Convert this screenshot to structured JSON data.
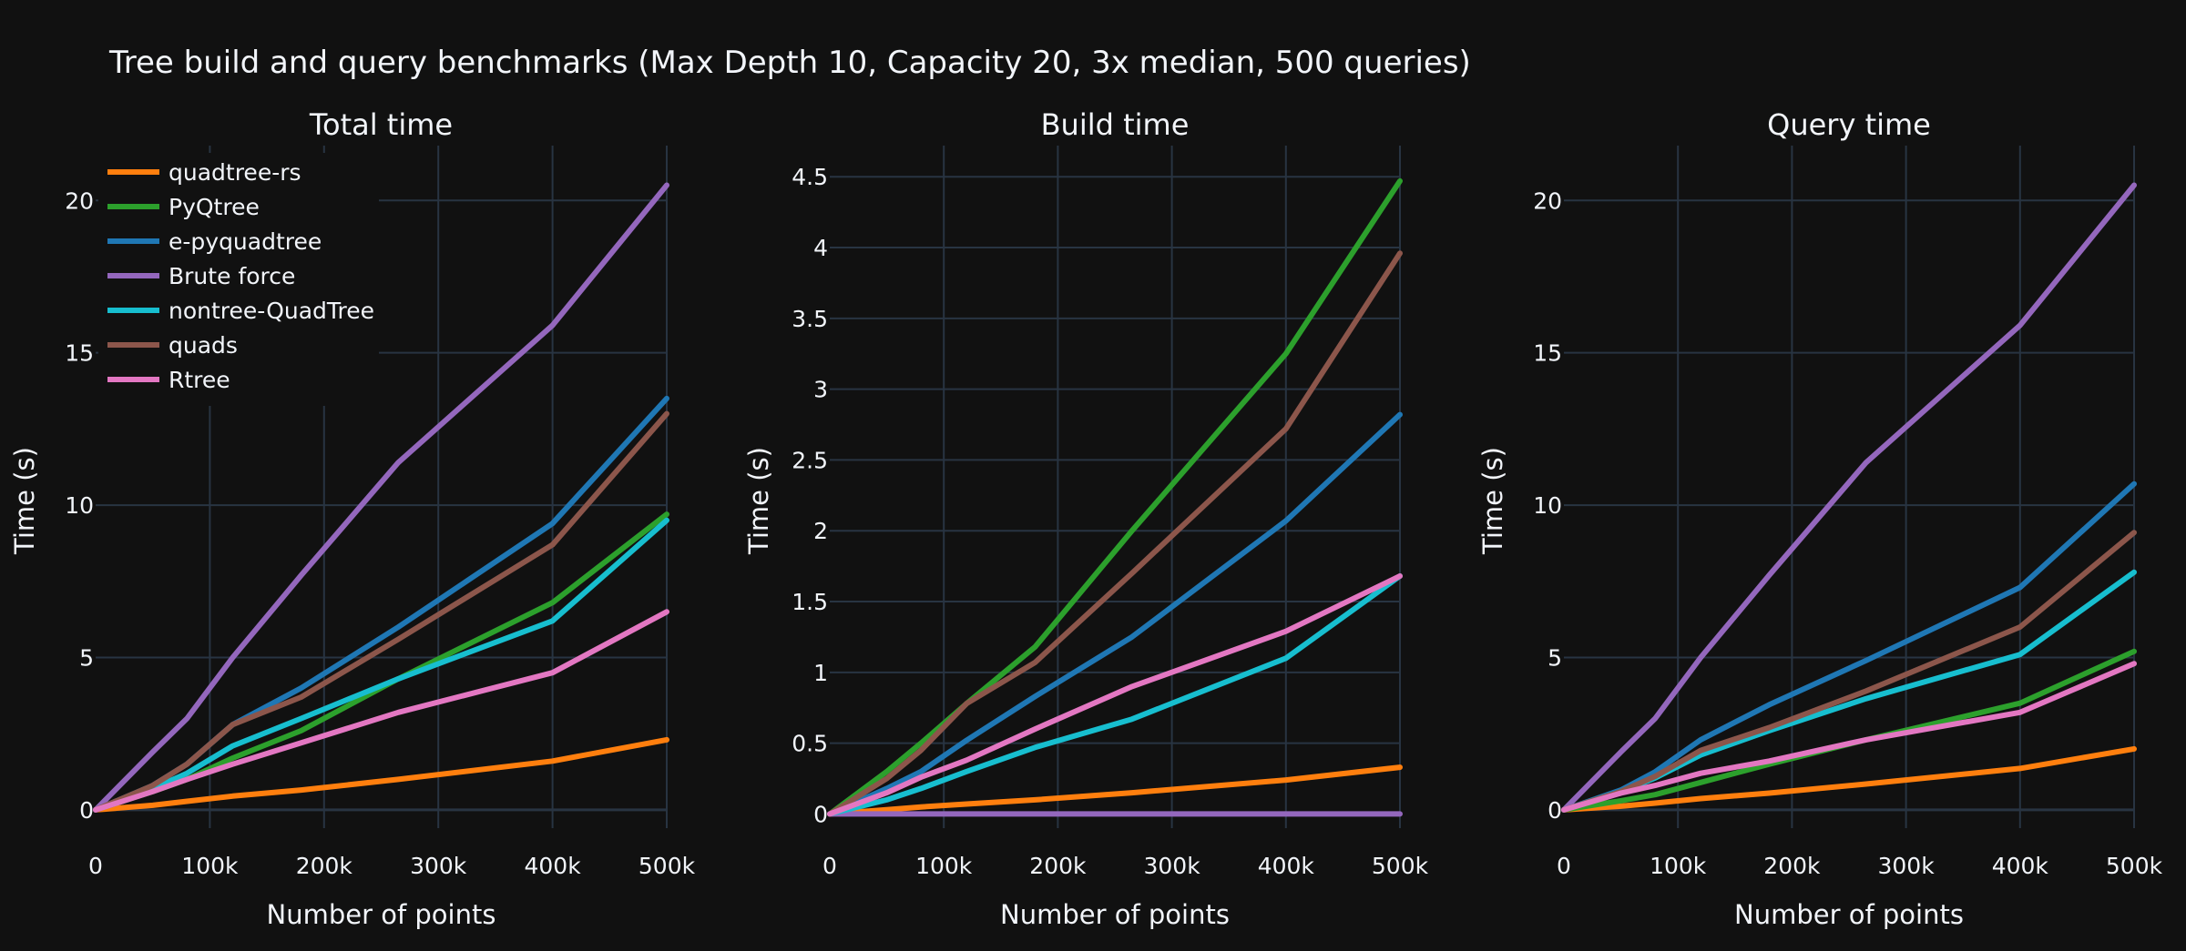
{
  "title": "Tree build and query benchmarks (Max Depth 10, Capacity 20, 3x median, 500 queries)",
  "colors": {
    "background": "#111111",
    "grid": "#283442",
    "text": "#f2f5fa"
  },
  "legend": {
    "placement": "top-left",
    "entries": [
      "quadtree-rs",
      "PyQtree",
      "e-pyquadtree",
      "Brute force",
      "nontree-QuadTree",
      "quads",
      "Rtree"
    ]
  },
  "chart_data": [
    {
      "type": "line",
      "title": "Total time",
      "xlabel": "Number of points",
      "ylabel": "Time (s)",
      "xlim": [
        0,
        500000
      ],
      "ylim": [
        -0.6,
        21.8
      ],
      "x_ticks": [
        0,
        100000,
        200000,
        300000,
        400000,
        500000
      ],
      "x_tick_labels": [
        "0",
        "100k",
        "200k",
        "300k",
        "400k",
        "500k"
      ],
      "y_ticks": [
        0,
        5,
        10,
        15,
        20
      ],
      "y_tick_labels": [
        "0",
        "5",
        "10",
        "15",
        "20"
      ],
      "grid": true,
      "x": [
        0,
        50000,
        80000,
        120000,
        180000,
        265000,
        400000,
        500000
      ],
      "series": [
        {
          "name": "quadtree-rs",
          "color": "#ff7f0e",
          "values": [
            0,
            0.15,
            0.28,
            0.45,
            0.65,
            1.0,
            1.6,
            2.3
          ]
        },
        {
          "name": "PyQtree",
          "color": "#2ca02c",
          "values": [
            0,
            0.6,
            1.0,
            1.7,
            2.6,
            4.3,
            6.8,
            9.7
          ]
        },
        {
          "name": "e-pyquadtree",
          "color": "#1f77b4",
          "values": [
            0,
            0.8,
            1.5,
            2.8,
            4.0,
            6.0,
            9.4,
            13.5
          ]
        },
        {
          "name": "Brute force",
          "color": "#9467bd",
          "values": [
            0,
            1.9,
            3.0,
            5.0,
            7.7,
            11.4,
            15.9,
            20.5
          ]
        },
        {
          "name": "nontree-QuadTree",
          "color": "#17becf",
          "values": [
            0,
            0.7,
            1.2,
            2.1,
            3.0,
            4.3,
            6.2,
            9.5
          ]
        },
        {
          "name": "quads",
          "color": "#8c564b",
          "values": [
            0,
            0.8,
            1.5,
            2.8,
            3.7,
            5.6,
            8.7,
            13.0
          ]
        },
        {
          "name": "Rtree",
          "color": "#e377c2",
          "values": [
            0,
            0.6,
            1.0,
            1.5,
            2.2,
            3.2,
            4.5,
            6.5
          ]
        }
      ]
    },
    {
      "type": "line",
      "title": "Build time",
      "xlabel": "Number of points",
      "ylabel": "Time (s)",
      "xlim": [
        0,
        500000
      ],
      "ylim": [
        -0.1,
        4.72
      ],
      "x_ticks": [
        0,
        100000,
        200000,
        300000,
        400000,
        500000
      ],
      "x_tick_labels": [
        "0",
        "100k",
        "200k",
        "300k",
        "400k",
        "500k"
      ],
      "y_ticks": [
        0,
        0.5,
        1,
        1.5,
        2,
        2.5,
        3,
        3.5,
        4,
        4.5
      ],
      "y_tick_labels": [
        "0",
        "0.5",
        "1",
        "1.5",
        "2",
        "2.5",
        "3",
        "3.5",
        "4",
        "4.5"
      ],
      "grid": true,
      "x": [
        0,
        50000,
        80000,
        120000,
        180000,
        265000,
        400000,
        500000
      ],
      "series": [
        {
          "name": "quadtree-rs",
          "color": "#ff7f0e",
          "values": [
            0,
            0.03,
            0.05,
            0.07,
            0.1,
            0.15,
            0.24,
            0.33
          ]
        },
        {
          "name": "PyQtree",
          "color": "#2ca02c",
          "values": [
            0,
            0.3,
            0.5,
            0.78,
            1.18,
            2.0,
            3.25,
            4.47
          ]
        },
        {
          "name": "e-pyquadtree",
          "color": "#1f77b4",
          "values": [
            0,
            0.18,
            0.3,
            0.52,
            0.83,
            1.25,
            2.07,
            2.82
          ]
        },
        {
          "name": "Brute force",
          "color": "#9467bd",
          "values": [
            0,
            0,
            0,
            0,
            0,
            0,
            0,
            0
          ]
        },
        {
          "name": "nontree-QuadTree",
          "color": "#17becf",
          "values": [
            0,
            0.1,
            0.18,
            0.3,
            0.47,
            0.67,
            1.1,
            1.68
          ]
        },
        {
          "name": "quads",
          "color": "#8c564b",
          "values": [
            0,
            0.25,
            0.45,
            0.78,
            1.07,
            1.7,
            2.72,
            3.96
          ]
        },
        {
          "name": "Rtree",
          "color": "#e377c2",
          "values": [
            0,
            0.15,
            0.26,
            0.38,
            0.6,
            0.9,
            1.29,
            1.68
          ]
        }
      ]
    },
    {
      "type": "line",
      "title": "Query time",
      "xlabel": "Number of points",
      "ylabel": "Time (s)",
      "xlim": [
        0,
        500000
      ],
      "ylim": [
        -0.6,
        21.8
      ],
      "x_ticks": [
        0,
        100000,
        200000,
        300000,
        400000,
        500000
      ],
      "x_tick_labels": [
        "0",
        "100k",
        "200k",
        "300k",
        "400k",
        "500k"
      ],
      "y_ticks": [
        0,
        5,
        10,
        15,
        20
      ],
      "y_tick_labels": [
        "0",
        "5",
        "10",
        "15",
        "20"
      ],
      "grid": true,
      "x": [
        0,
        50000,
        80000,
        120000,
        180000,
        265000,
        400000,
        500000
      ],
      "series": [
        {
          "name": "quadtree-rs",
          "color": "#ff7f0e",
          "values": [
            0,
            0.12,
            0.22,
            0.37,
            0.55,
            0.85,
            1.36,
            2.0
          ]
        },
        {
          "name": "PyQtree",
          "color": "#2ca02c",
          "values": [
            0,
            0.3,
            0.5,
            0.9,
            1.5,
            2.3,
            3.5,
            5.2
          ]
        },
        {
          "name": "e-pyquadtree",
          "color": "#1f77b4",
          "values": [
            0,
            0.65,
            1.25,
            2.3,
            3.45,
            4.9,
            7.3,
            10.7
          ]
        },
        {
          "name": "Brute force",
          "color": "#9467bd",
          "values": [
            0,
            1.9,
            3.0,
            5.0,
            7.7,
            11.4,
            15.9,
            20.5
          ]
        },
        {
          "name": "nontree-QuadTree",
          "color": "#17becf",
          "values": [
            0,
            0.6,
            1.05,
            1.8,
            2.6,
            3.65,
            5.1,
            7.8
          ]
        },
        {
          "name": "quads",
          "color": "#8c564b",
          "values": [
            0,
            0.6,
            1.1,
            1.95,
            2.7,
            3.9,
            6.0,
            9.1
          ]
        },
        {
          "name": "Rtree",
          "color": "#e377c2",
          "values": [
            0,
            0.55,
            0.8,
            1.2,
            1.6,
            2.3,
            3.2,
            4.8
          ]
        }
      ]
    }
  ]
}
